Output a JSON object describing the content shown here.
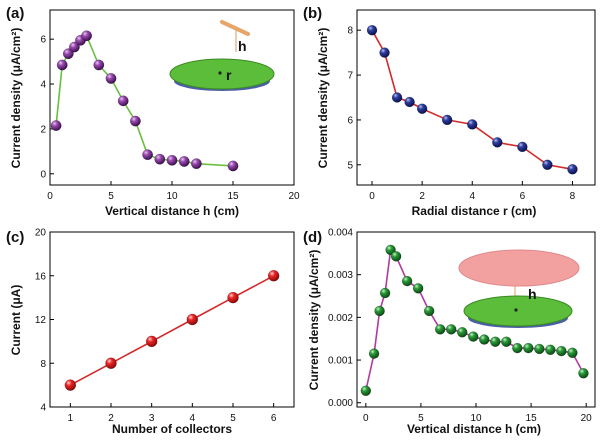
{
  "chart_data": [
    {
      "type": "line",
      "panel_label": "(a)",
      "xlabel": "Vertical distance h (cm)",
      "ylabel": "Current density (μA/cm²)",
      "xlim": [
        0,
        20
      ],
      "ylim": [
        -0.5,
        7.3
      ],
      "xticks": [
        "0",
        "5",
        "10",
        "15",
        "20"
      ],
      "yticks": [
        "0",
        "2",
        "4",
        "6"
      ],
      "line_color": "#6abf40",
      "marker_color": "#7b2d8e",
      "inset": "collector disk with needle above; labels h and r",
      "inset_labels": [
        "h",
        "r"
      ],
      "series": [
        {
          "x": [
            0.5,
            1,
            1.5,
            2,
            2.5,
            3,
            4,
            5,
            6,
            7,
            8,
            9,
            10,
            11,
            12,
            15
          ],
          "y": [
            2.15,
            4.85,
            5.35,
            5.65,
            5.95,
            6.15,
            4.85,
            4.25,
            3.25,
            2.35,
            0.85,
            0.65,
            0.6,
            0.55,
            0.45,
            0.35
          ]
        }
      ]
    },
    {
      "type": "line",
      "panel_label": "(b)",
      "xlabel": "Radial distance r (cm)",
      "ylabel": "Current density (μA/cm²)",
      "xlim": [
        -0.6,
        8.9
      ],
      "ylim": [
        4.55,
        8.45
      ],
      "xticks": [
        "0",
        "2",
        "4",
        "6",
        "8"
      ],
      "yticks": [
        "5",
        "6",
        "7",
        "8"
      ],
      "line_color": "#d42a2a",
      "marker_color": "#1f2e8a",
      "series": [
        {
          "x": [
            0,
            0.5,
            1,
            1.5,
            2,
            3,
            4,
            5,
            6,
            7,
            8
          ],
          "y": [
            8.0,
            7.5,
            6.5,
            6.4,
            6.25,
            6.0,
            5.9,
            5.5,
            5.4,
            5.0,
            4.9
          ]
        }
      ]
    },
    {
      "type": "line",
      "panel_label": "(c)",
      "xlabel": "Number of collectors",
      "ylabel": "Current (μA)",
      "xlim": [
        0.5,
        6.5
      ],
      "ylim": [
        4,
        20
      ],
      "xticks": [
        "1",
        "2",
        "3",
        "4",
        "5",
        "6"
      ],
      "yticks": [
        "4",
        "8",
        "12",
        "16",
        "20"
      ],
      "line_color": "#d42a2a",
      "marker_color": "#e32020",
      "series": [
        {
          "x": [
            1,
            2,
            3,
            4,
            5,
            6
          ],
          "y": [
            6,
            8,
            10,
            12,
            14,
            16
          ]
        }
      ]
    },
    {
      "type": "line",
      "panel_label": "(d)",
      "xlabel": "Vertical distance h (cm)",
      "ylabel": "Current density (μA/cm²)",
      "xlim": [
        -0.8,
        20.8
      ],
      "ylim": [
        -0.0001,
        0.004
      ],
      "xticks": [
        "0",
        "5",
        "10",
        "15",
        "20"
      ],
      "yticks": [
        "0.000",
        "0.001",
        "0.002",
        "0.003",
        "0.004"
      ],
      "line_color": "#b03aa0",
      "marker_color": "#1f8a30",
      "inset": "pink disk above green collector disk; label h",
      "inset_labels": [
        "h"
      ],
      "series": [
        {
          "x": [
            0,
            0.75,
            1.25,
            1.75,
            2.25,
            2.75,
            3.75,
            4.75,
            5.75,
            6.75,
            7.75,
            8.75,
            9.75,
            10.75,
            11.75,
            12.75,
            13.75,
            14.75,
            15.75,
            16.75,
            17.75,
            18.75,
            19.75
          ],
          "y": [
            0.00028,
            0.00115,
            0.00215,
            0.00257,
            0.00358,
            0.00343,
            0.00285,
            0.00268,
            0.00215,
            0.00172,
            0.00172,
            0.00165,
            0.00155,
            0.00148,
            0.00143,
            0.00143,
            0.00128,
            0.00128,
            0.00126,
            0.00124,
            0.00121,
            0.00117,
            0.00069
          ]
        }
      ]
    }
  ]
}
